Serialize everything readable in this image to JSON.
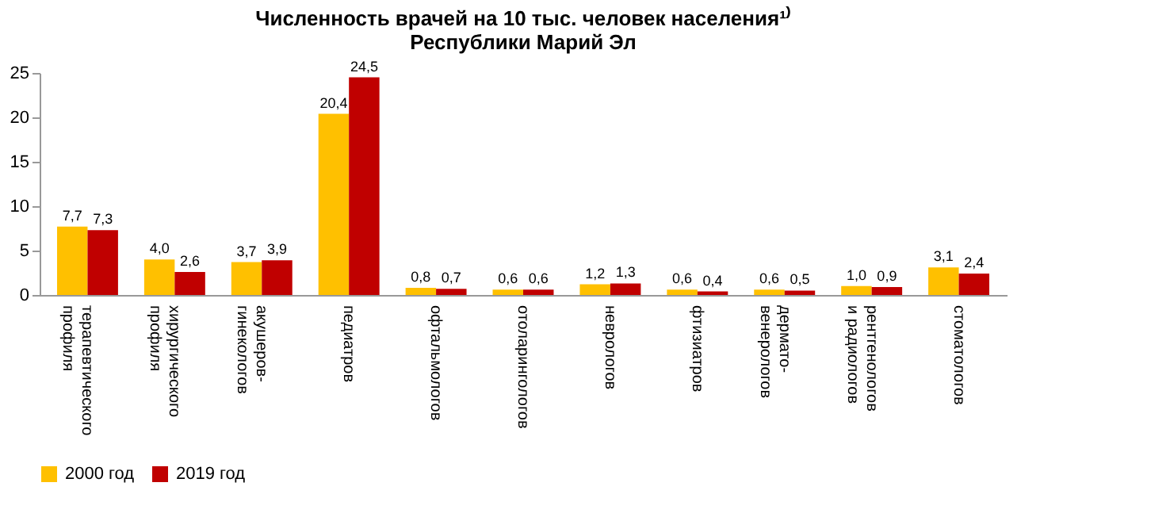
{
  "chart_data": {
    "type": "bar",
    "title": [
      "Численность врачей на 10 тыс. человек населения¹⁾",
      "Республики Марий Эл"
    ],
    "categories": [
      "терапевтического профиля",
      "хирургического профиля",
      "акушеров-гинекологов",
      "педиатров",
      "офтальмологов",
      "отоларингологов",
      "неврологов",
      "фтизиатров",
      "дермато-венерологов",
      "рентгенологов и радиологов",
      "стоматологов"
    ],
    "series": [
      {
        "name": "2000 год",
        "color": "#ffc000",
        "values": [
          7.7,
          4.0,
          3.7,
          20.4,
          0.8,
          0.6,
          1.2,
          0.6,
          0.6,
          1.0,
          3.1
        ],
        "value_labels": [
          "7,7",
          "4,0",
          "3,7",
          "20,4",
          "0,8",
          "0,6",
          "1,2",
          "0,6",
          "0,6",
          "1,0",
          "3,1"
        ]
      },
      {
        "name": "2019 год",
        "color": "#c00000",
        "values": [
          7.3,
          2.6,
          3.9,
          24.5,
          0.7,
          0.6,
          1.3,
          0.4,
          0.5,
          0.9,
          2.4
        ],
        "value_labels": [
          "7,3",
          "2,6",
          "3,9",
          "24,5",
          "0,7",
          "0,6",
          "1,3",
          "0,4",
          "0,5",
          "0,9",
          "2,4"
        ]
      }
    ],
    "ylim": [
      0,
      25
    ],
    "yticks": [
      0,
      5,
      10,
      15,
      20,
      25
    ],
    "grid": false,
    "legend": "bottom"
  }
}
